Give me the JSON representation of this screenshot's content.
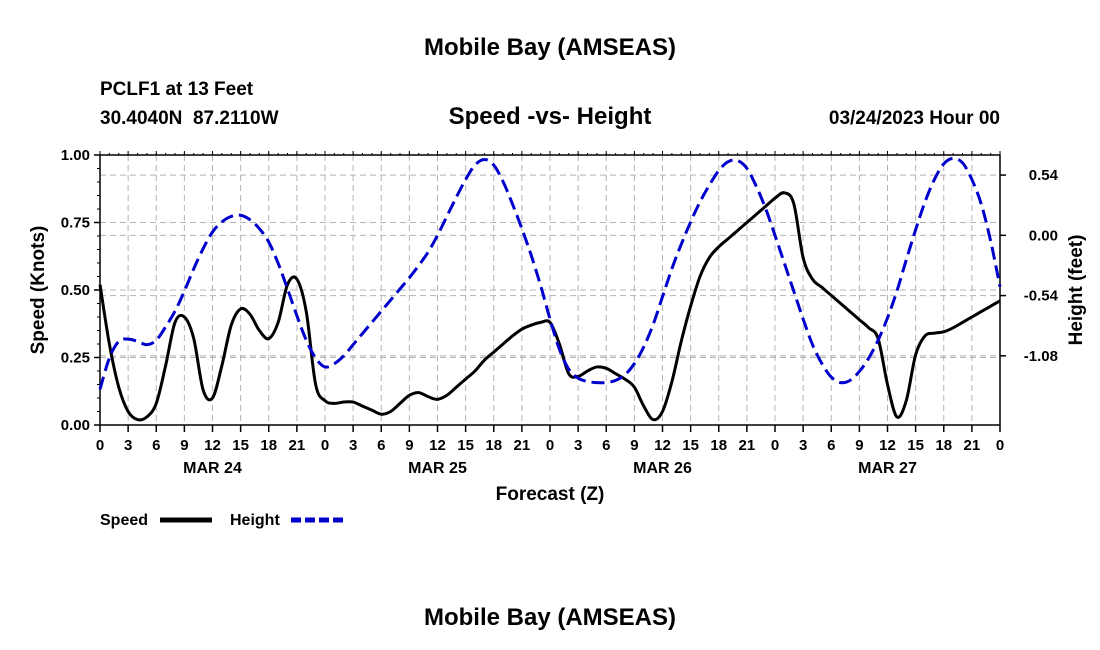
{
  "page": {
    "title": "Mobile Bay (AMSEAS)",
    "footer_title": "Mobile Bay (AMSEAS)"
  },
  "header": {
    "station": "PCLF1 at 13 Feet",
    "coords": "30.4040N  87.2110W",
    "subtitle": "Speed -vs- Height",
    "datetime": "03/24/2023 Hour 00"
  },
  "chart_data": {
    "type": "line",
    "title": "Speed -vs- Height",
    "xlabel": "Forecast (Z)",
    "ylabel": "Speed (Knots)",
    "y2label": "Height (feet)",
    "xlim": [
      0,
      96
    ],
    "ylim": [
      0,
      1.0
    ],
    "y2lim": [
      -1.7,
      0.72
    ],
    "x_ticks": [
      0,
      3,
      6,
      9,
      12,
      15,
      18,
      21,
      24,
      27,
      30,
      33,
      36,
      39,
      42,
      45,
      48,
      51,
      54,
      57,
      60,
      63,
      66,
      69,
      72,
      75,
      78,
      81,
      84,
      87,
      90,
      93,
      96
    ],
    "x_tick_labels": [
      "0",
      "3",
      "6",
      "9",
      "12",
      "15",
      "18",
      "21",
      "0",
      "3",
      "6",
      "9",
      "12",
      "15",
      "18",
      "21",
      "0",
      "3",
      "6",
      "9",
      "12",
      "15",
      "18",
      "21",
      "0",
      "3",
      "6",
      "9",
      "12",
      "15",
      "18",
      "21",
      "0"
    ],
    "date_labels": [
      {
        "x": 12,
        "label": "MAR 24"
      },
      {
        "x": 36,
        "label": "MAR 25"
      },
      {
        "x": 60,
        "label": "MAR 26"
      },
      {
        "x": 84,
        "label": "MAR 27"
      }
    ],
    "y_ticks": [
      0,
      0.25,
      0.5,
      0.75,
      1.0
    ],
    "y_tick_labels": [
      "0.00",
      "0.25",
      "0.50",
      "0.75",
      "1.00"
    ],
    "y2_ticks": [
      0.54,
      0.0,
      -0.54,
      -1.08
    ],
    "y2_tick_labels": [
      "0.54",
      "0.00",
      "-0.54",
      "-1.08"
    ],
    "grid": true,
    "legend": [
      {
        "label": "Speed",
        "color": "#000000",
        "dash": "solid"
      },
      {
        "label": "Height",
        "color": "#0000cc",
        "dash": "dashed"
      }
    ],
    "series": [
      {
        "name": "Speed",
        "axis": "left",
        "color": "#000000",
        "x": [
          0,
          1,
          2,
          3,
          4,
          5,
          6,
          7,
          8,
          9,
          10,
          11,
          12,
          13,
          14,
          15,
          16,
          17,
          18,
          19,
          20,
          21,
          22,
          23,
          24,
          25,
          26,
          27,
          28,
          29,
          30,
          31,
          32,
          33,
          34,
          35,
          36,
          37,
          38,
          39,
          40,
          41,
          42,
          43,
          44,
          45,
          46,
          47,
          48,
          49,
          50,
          51,
          52,
          53,
          54,
          55,
          56,
          57,
          58,
          59,
          60,
          61,
          62,
          63,
          64,
          65,
          66,
          67,
          68,
          69,
          70,
          71,
          72,
          73,
          74,
          75,
          76,
          77,
          78,
          79,
          80,
          81,
          82,
          83,
          84,
          85,
          86,
          87,
          88,
          89,
          90,
          91,
          92,
          93,
          94,
          95,
          96
        ],
        "values": [
          0.52,
          0.3,
          0.14,
          0.05,
          0.02,
          0.03,
          0.08,
          0.22,
          0.38,
          0.4,
          0.32,
          0.13,
          0.1,
          0.22,
          0.37,
          0.43,
          0.41,
          0.35,
          0.32,
          0.38,
          0.52,
          0.54,
          0.42,
          0.15,
          0.09,
          0.08,
          0.085,
          0.085,
          0.07,
          0.055,
          0.04,
          0.05,
          0.08,
          0.11,
          0.12,
          0.105,
          0.095,
          0.11,
          0.14,
          0.17,
          0.2,
          0.24,
          0.27,
          0.3,
          0.33,
          0.355,
          0.37,
          0.38,
          0.38,
          0.3,
          0.19,
          0.18,
          0.2,
          0.215,
          0.21,
          0.19,
          0.17,
          0.14,
          0.07,
          0.02,
          0.05,
          0.16,
          0.31,
          0.44,
          0.55,
          0.62,
          0.66,
          0.69,
          0.72,
          0.75,
          0.78,
          0.81,
          0.84,
          0.86,
          0.82,
          0.62,
          0.54,
          0.51,
          0.48,
          0.45,
          0.42,
          0.39,
          0.36,
          0.32,
          0.15,
          0.03,
          0.09,
          0.26,
          0.33,
          0.34,
          0.345,
          0.36,
          0.38,
          0.4,
          0.42,
          0.44,
          0.46
        ]
      },
      {
        "name": "Height",
        "axis": "right",
        "color": "#0000cc",
        "x": [
          0,
          1,
          2,
          3,
          4,
          5,
          6,
          7,
          8,
          9,
          10,
          11,
          12,
          13,
          14,
          15,
          16,
          17,
          18,
          19,
          20,
          21,
          22,
          23,
          24,
          25,
          26,
          27,
          28,
          29,
          30,
          31,
          32,
          33,
          34,
          35,
          36,
          37,
          38,
          39,
          40,
          41,
          42,
          43,
          44,
          45,
          46,
          47,
          48,
          49,
          50,
          51,
          52,
          53,
          54,
          55,
          56,
          57,
          58,
          59,
          60,
          61,
          62,
          63,
          64,
          65,
          66,
          67,
          68,
          69,
          70,
          71,
          72,
          73,
          74,
          75,
          76,
          77,
          78,
          79,
          80,
          81,
          82,
          83,
          84,
          85,
          86,
          87,
          88,
          89,
          90,
          91,
          92,
          93,
          94,
          95,
          96
        ],
        "values": [
          -1.38,
          -1.1,
          -0.95,
          -0.93,
          -0.95,
          -0.98,
          -0.94,
          -0.82,
          -0.68,
          -0.5,
          -0.3,
          -0.12,
          0.03,
          0.12,
          0.17,
          0.18,
          0.14,
          0.06,
          -0.06,
          -0.25,
          -0.48,
          -0.72,
          -0.94,
          -1.1,
          -1.18,
          -1.15,
          -1.08,
          -0.98,
          -0.88,
          -0.78,
          -0.68,
          -0.58,
          -0.48,
          -0.38,
          -0.27,
          -0.15,
          0.0,
          0.17,
          0.34,
          0.5,
          0.63,
          0.68,
          0.63,
          0.48,
          0.28,
          0.06,
          -0.18,
          -0.45,
          -0.75,
          -1.02,
          -1.2,
          -1.28,
          -1.31,
          -1.32,
          -1.32,
          -1.3,
          -1.25,
          -1.15,
          -1.0,
          -0.8,
          -0.55,
          -0.3,
          -0.08,
          0.12,
          0.3,
          0.45,
          0.58,
          0.66,
          0.67,
          0.6,
          0.44,
          0.24,
          0.0,
          -0.25,
          -0.5,
          -0.75,
          -0.98,
          -1.15,
          -1.27,
          -1.32,
          -1.3,
          -1.22,
          -1.1,
          -0.94,
          -0.74,
          -0.5,
          -0.22,
          0.05,
          0.3,
          0.5,
          0.64,
          0.69,
          0.65,
          0.5,
          0.28,
          -0.05,
          -0.46
        ]
      }
    ]
  }
}
